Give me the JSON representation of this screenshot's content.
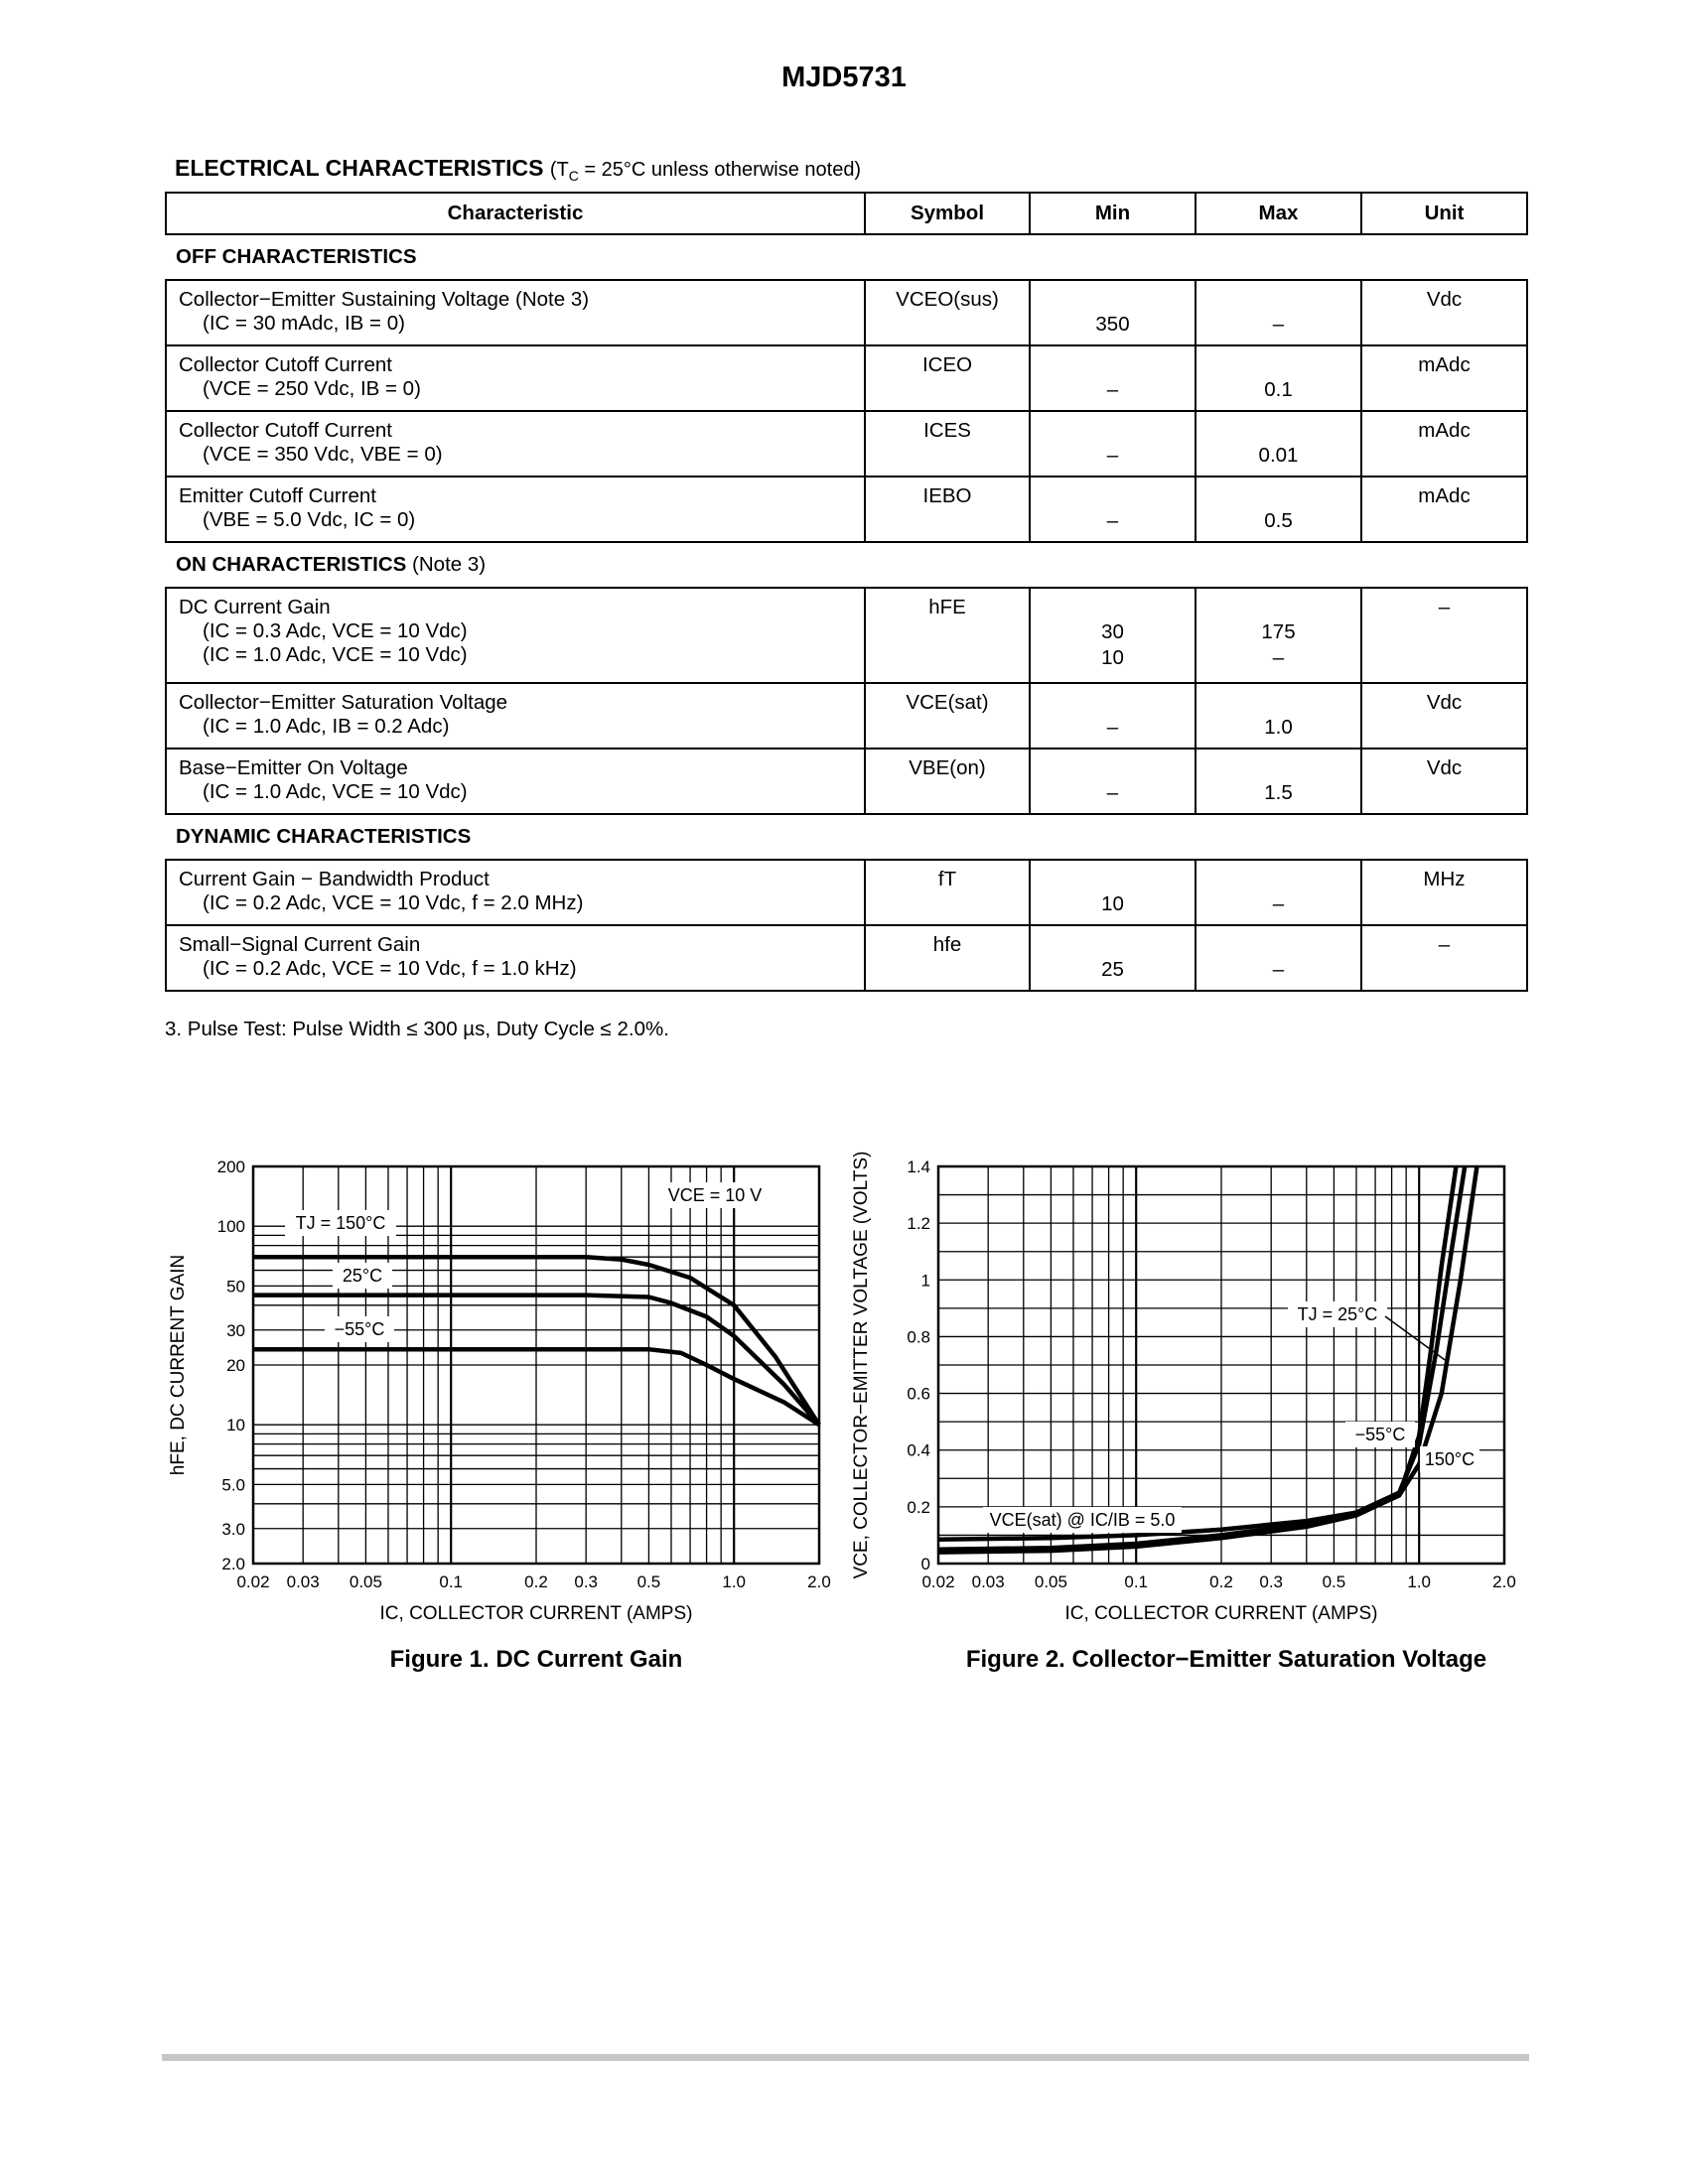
{
  "title": "MJD5731",
  "heading": {
    "bold": "ELECTRICAL CHARACTERISTICS",
    "cond": "(TC = 25°C unless otherwise noted)"
  },
  "table": {
    "headers": [
      "Characteristic",
      "Symbol",
      "Min",
      "Max",
      "Unit"
    ],
    "sections": [
      {
        "name": "OFF CHARACTERISTICS",
        "note": "",
        "rows": [
          {
            "char": "Collector−Emitter Sustaining Voltage (Note 3)",
            "cond": [
              "(IC = 30 mAdc, IB = 0)"
            ],
            "symbol": "VCEO(sus)",
            "min": [
              "350"
            ],
            "max": [
              "–"
            ],
            "unit": "Vdc"
          },
          {
            "char": "Collector Cutoff Current",
            "cond": [
              "(VCE = 250 Vdc, IB = 0)"
            ],
            "symbol": "ICEO",
            "min": [
              "–"
            ],
            "max": [
              "0.1"
            ],
            "unit": "mAdc"
          },
          {
            "char": "Collector Cutoff Current",
            "cond": [
              "(VCE = 350 Vdc, VBE = 0)"
            ],
            "symbol": "ICES",
            "min": [
              "–"
            ],
            "max": [
              "0.01"
            ],
            "unit": "mAdc"
          },
          {
            "char": "Emitter Cutoff Current",
            "cond": [
              "(VBE = 5.0 Vdc, IC = 0)"
            ],
            "symbol": "IEBO",
            "min": [
              "–"
            ],
            "max": [
              "0.5"
            ],
            "unit": "mAdc"
          }
        ]
      },
      {
        "name": "ON CHARACTERISTICS",
        "note": "(Note 3)",
        "rows": [
          {
            "char": "DC Current Gain",
            "cond": [
              "(IC = 0.3 Adc, VCE = 10 Vdc)",
              "(IC = 1.0 Adc, VCE = 10 Vdc)"
            ],
            "symbol": "hFE",
            "min": [
              "30",
              "10"
            ],
            "max": [
              "175",
              "–"
            ],
            "unit": "–"
          },
          {
            "char": "Collector−Emitter Saturation Voltage",
            "cond": [
              "(IC = 1.0 Adc, IB = 0.2 Adc)"
            ],
            "symbol": "VCE(sat)",
            "min": [
              "–"
            ],
            "max": [
              "1.0"
            ],
            "unit": "Vdc"
          },
          {
            "char": "Base−Emitter On Voltage",
            "cond": [
              "(IC = 1.0 Adc, VCE = 10 Vdc)"
            ],
            "symbol": "VBE(on)",
            "min": [
              "–"
            ],
            "max": [
              "1.5"
            ],
            "unit": "Vdc"
          }
        ]
      },
      {
        "name": "DYNAMIC CHARACTERISTICS",
        "note": "",
        "rows": [
          {
            "char": "Current Gain − Bandwidth Product",
            "cond": [
              "(IC = 0.2 Adc, VCE = 10 Vdc, f = 2.0 MHz)"
            ],
            "symbol": "fT",
            "min": [
              "10"
            ],
            "max": [
              "–"
            ],
            "unit": "MHz"
          },
          {
            "char": "Small−Signal Current Gain",
            "cond": [
              "(IC = 0.2 Adc, VCE = 10 Vdc, f = 1.0 kHz)"
            ],
            "symbol": "hfe",
            "min": [
              "25"
            ],
            "max": [
              "–"
            ],
            "unit": "–"
          }
        ]
      }
    ]
  },
  "footnote": "3.  Pulse Test: Pulse Width ≤ 300 µs, Duty Cycle ≤ 2.0%.",
  "chart_data": [
    {
      "type": "line",
      "title": "Figure 1. DC Current Gain",
      "xlabel": "IC, COLLECTOR CURRENT (AMPS)",
      "ylabel": "hFE, DC CURRENT GAIN",
      "xscale": "log",
      "yscale": "log",
      "xlim": [
        0.02,
        2.0
      ],
      "ylim": [
        2.0,
        200
      ],
      "xticks": [
        "0.02",
        "0.03",
        "0.05",
        "0.1",
        "0.2",
        "0.3",
        "0.5",
        "1.0",
        "2.0"
      ],
      "yticks": [
        "200",
        "100",
        "50",
        "30",
        "20",
        "10",
        "5.0",
        "3.0",
        "2.0"
      ],
      "annotations": [
        "VCE = 10 V"
      ],
      "series": [
        {
          "name": "TJ = 150°C",
          "x": [
            0.02,
            0.1,
            0.3,
            0.4,
            0.5,
            0.7,
            1.0,
            1.4,
            2.0
          ],
          "y": [
            70,
            70,
            70,
            68,
            64,
            55,
            40,
            22,
            10
          ]
        },
        {
          "name": "25°C",
          "x": [
            0.02,
            0.1,
            0.3,
            0.5,
            0.6,
            0.8,
            1.0,
            1.5,
            2.0
          ],
          "y": [
            45,
            45,
            45,
            44,
            41,
            35,
            28,
            16,
            10
          ]
        },
        {
          "name": "−55°C",
          "x": [
            0.02,
            0.1,
            0.3,
            0.5,
            0.65,
            0.8,
            1.0,
            1.5,
            2.0
          ],
          "y": [
            24,
            24,
            24,
            24,
            23,
            20,
            17,
            13,
            10
          ]
        }
      ]
    },
    {
      "type": "line",
      "title": "Figure 2. Collector−Emitter Saturation Voltage",
      "xlabel": "IC, COLLECTOR CURRENT (AMPS)",
      "ylabel": "VCE, COLLECTOR−EMITTER VOLTAGE (VOLTS)",
      "xscale": "log",
      "xlim": [
        0.02,
        2.0
      ],
      "ylim": [
        0,
        1.4
      ],
      "xticks": [
        "0.02",
        "0.03",
        "0.05",
        "0.1",
        "0.2",
        "0.3",
        "0.5",
        "1.0",
        "2.0"
      ],
      "yticks": [
        "1.4",
        "1.2",
        "1",
        "0.8",
        "0.6",
        "0.4",
        "0.2",
        "0"
      ],
      "annotations": [
        "VCE(sat) @ IC/IB = 5.0"
      ],
      "series": [
        {
          "name": "TJ = 25°C",
          "x": [
            0.02,
            0.05,
            0.1,
            0.2,
            0.4,
            0.6,
            0.85,
            1.0,
            1.15,
            1.3,
            1.45
          ],
          "y": [
            0.05,
            0.055,
            0.07,
            0.1,
            0.14,
            0.18,
            0.25,
            0.42,
            0.75,
            1.1,
            1.4
          ]
        },
        {
          "name": "−55°C",
          "x": [
            0.02,
            0.05,
            0.1,
            0.2,
            0.4,
            0.6,
            0.85,
            1.0,
            1.1,
            1.2,
            1.35
          ],
          "y": [
            0.085,
            0.09,
            0.1,
            0.12,
            0.15,
            0.18,
            0.24,
            0.45,
            0.75,
            1.05,
            1.4
          ]
        },
        {
          "name": "150°C",
          "x": [
            0.02,
            0.05,
            0.1,
            0.2,
            0.4,
            0.6,
            0.85,
            1.0,
            1.2,
            1.4,
            1.6
          ],
          "y": [
            0.04,
            0.045,
            0.06,
            0.09,
            0.13,
            0.17,
            0.24,
            0.35,
            0.6,
            1.0,
            1.4
          ]
        }
      ]
    }
  ]
}
